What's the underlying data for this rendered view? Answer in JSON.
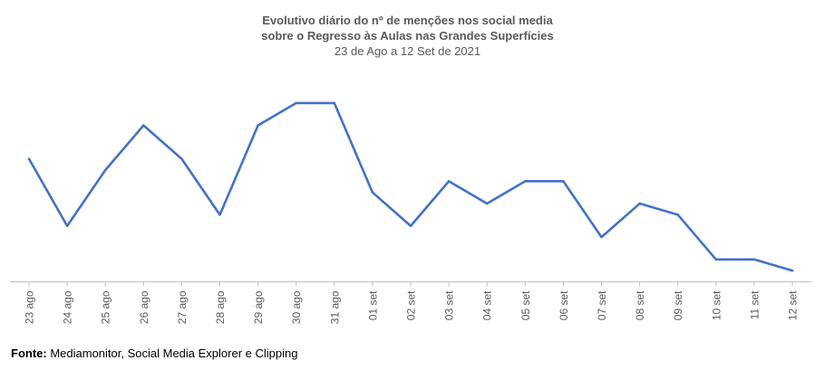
{
  "title_lines": [
    "Evolutivo diário do nº de menções nos social media",
    "sobre o Regresso às Aulas nas Grandes Superfícies"
  ],
  "subtitle": "23 de Ago a 12 Set de 2021",
  "source": {
    "label": "Fonte:",
    "text": " Mediamonitor, Social Media Explorer e Clipping"
  },
  "colors": {
    "line": "#4472C4",
    "title": "#595959",
    "axis": "#BFBFBF"
  },
  "chart_data": {
    "type": "line",
    "categories": [
      "23 ago",
      "24 ago",
      "25 ago",
      "26 ago",
      "27 ago",
      "28 ago",
      "29 ago",
      "30 ago",
      "31 ago",
      "01 set",
      "02 set",
      "03 set",
      "04 set",
      "05 set",
      "06 set",
      "07 set",
      "08 set",
      "09 set",
      "10 set",
      "11 set",
      "12 set"
    ],
    "series": [
      {
        "values": [
          11,
          5,
          10,
          14,
          11,
          6,
          14,
          16,
          16,
          8,
          5,
          9,
          7,
          9,
          9,
          4,
          7,
          6,
          2,
          2,
          1
        ]
      }
    ],
    "ylim": [
      0,
      21
    ],
    "grid": false,
    "legend": "none",
    "y_axis_visible": false
  }
}
